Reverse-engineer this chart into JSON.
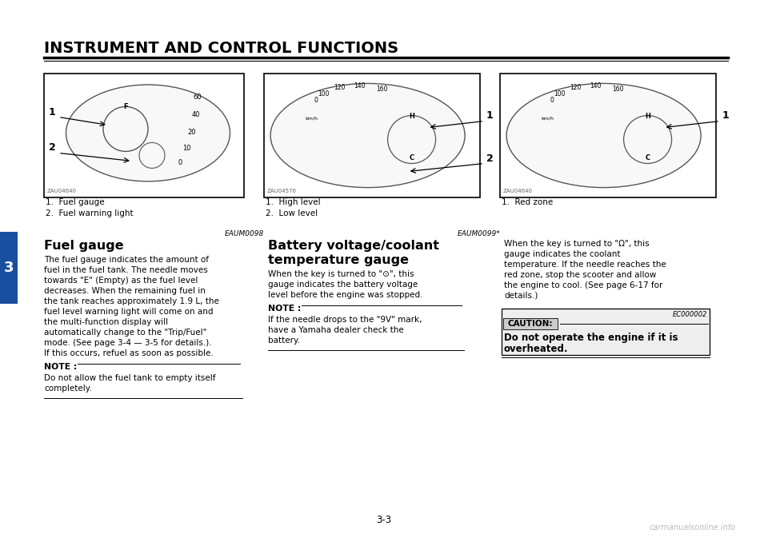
{
  "bg_color": "#ffffff",
  "title": "INSTRUMENT AND CONTROL FUNCTIONS",
  "page_number": "3-3",
  "watermark": "carmanualsonline.info",
  "diag1_label1": "1.  Fuel gauge",
  "diag1_label2": "2.  Fuel warning light",
  "diag2_label1": "1.  High level",
  "diag2_label2": "2.  Low level",
  "diag3_label1": "1.  Red zone",
  "ref1": "EAUM0098",
  "section1_title": "Fuel gauge",
  "body1_lines": [
    "The fuel gauge indicates the amount of",
    "fuel in the fuel tank. The needle moves",
    "towards \"E\" (Empty) as the fuel level",
    "decreases. When the remaining fuel in",
    "the tank reaches approximately 1.9 L, the",
    "fuel level warning light will come on and",
    "the multi-function display will",
    "automatically change to the \"Trip/Fuel\"",
    "mode. (See page 3-4 — 3-5 for details.).",
    "If this occurs, refuel as soon as possible."
  ],
  "note1_title": "NOTE :",
  "note1_lines": [
    "Do not allow the fuel tank to empty itself",
    "completely."
  ],
  "ref2": "EAUM0099*",
  "section2_title1": "Battery voltage/coolant",
  "section2_title2": "temperature gauge",
  "body2_lines": [
    "When the key is turned to \"⊙\", this",
    "gauge indicates the battery voltage",
    "level before the engine was stopped."
  ],
  "note2_title": "NOTE :",
  "note2_lines": [
    "If the needle drops to the \"9V\" mark,",
    "have a Yamaha dealer check the",
    "battery."
  ],
  "body3_lines": [
    "When the key is turned to \"Ω\", this",
    "gauge indicates the coolant",
    "temperature. If the needle reaches the",
    "red zone, stop the scooter and allow",
    "the engine to cool. (See page 6-17 for",
    "details.)"
  ],
  "caution_ref": "EC000002",
  "caution_title": "CAUTION:",
  "caution_line1": "Do not operate the engine if it is",
  "caution_line2": "overheated."
}
